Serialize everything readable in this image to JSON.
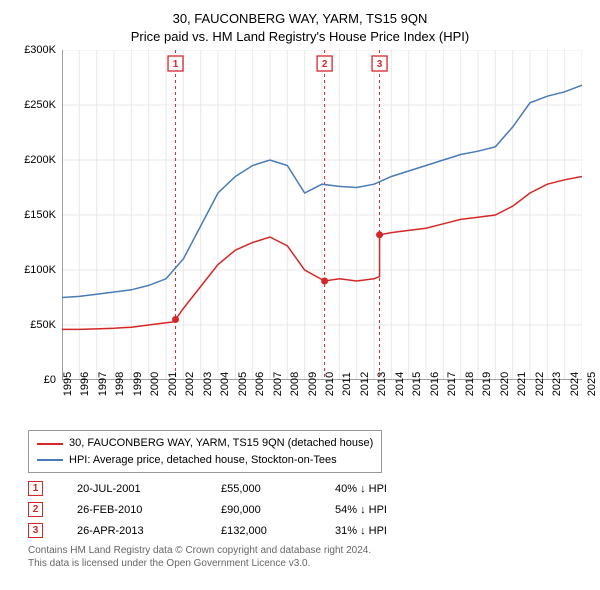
{
  "title_line1": "30, FAUCONBERG WAY, YARM, TS15 9QN",
  "title_line2": "Price paid vs. HM Land Registry's House Price Index (HPI)",
  "chart": {
    "type": "line",
    "background_color": "#ffffff",
    "grid_color": "#e8e8e8",
    "axis_color": "#444444",
    "ylim": [
      0,
      300000
    ],
    "ytick_step": 50000,
    "y_labels": [
      "£0",
      "£50K",
      "£100K",
      "£150K",
      "£200K",
      "£250K",
      "£300K"
    ],
    "xlim": [
      1995,
      2025
    ],
    "x_labels": [
      "1995",
      "1996",
      "1997",
      "1998",
      "1999",
      "2000",
      "2001",
      "2002",
      "2003",
      "2004",
      "2005",
      "2006",
      "2007",
      "2008",
      "2009",
      "2010",
      "2011",
      "2012",
      "2013",
      "2014",
      "2015",
      "2016",
      "2017",
      "2018",
      "2019",
      "2020",
      "2021",
      "2022",
      "2023",
      "2024",
      "2025"
    ],
    "label_fontsize": 11,
    "title_fontsize": 13,
    "series_price": {
      "label": "30, FAUCONBERG WAY, YARM, TS15 9QN (detached house)",
      "color": "#d62728",
      "line_width": 1.5,
      "x": [
        1995,
        1996,
        1997,
        1998,
        1999,
        2000,
        2001,
        2001.55,
        2001.55,
        2002,
        2003,
        2004,
        2005,
        2006,
        2007,
        2008,
        2009,
        2010.15,
        2010.15,
        2011,
        2012,
        2013,
        2013.32,
        2013.32,
        2014,
        2015,
        2016,
        2017,
        2018,
        2019,
        2020,
        2021,
        2022,
        2023,
        2024,
        2025
      ],
      "y": [
        46000,
        46000,
        46500,
        47000,
        48000,
        50000,
        52000,
        53000,
        55000,
        65000,
        85000,
        105000,
        118000,
        125000,
        130000,
        122000,
        100000,
        90000,
        90000,
        92000,
        90000,
        92000,
        94000,
        132000,
        134000,
        136000,
        138000,
        142000,
        146000,
        148000,
        150000,
        158000,
        170000,
        178000,
        182000,
        185000
      ]
    },
    "series_hpi": {
      "label": "HPI: Average price, detached house, Stockton-on-Tees",
      "color": "#4a7bb5",
      "line_width": 1.5,
      "x": [
        1995,
        1996,
        1997,
        1998,
        1999,
        2000,
        2001,
        2002,
        2003,
        2004,
        2005,
        2006,
        2007,
        2008,
        2009,
        2010,
        2011,
        2012,
        2013,
        2014,
        2015,
        2016,
        2017,
        2018,
        2019,
        2020,
        2021,
        2022,
        2023,
        2024,
        2025
      ],
      "y": [
        75000,
        76000,
        78000,
        80000,
        82000,
        86000,
        92000,
        110000,
        140000,
        170000,
        185000,
        195000,
        200000,
        195000,
        170000,
        178000,
        176000,
        175000,
        178000,
        185000,
        190000,
        195000,
        200000,
        205000,
        208000,
        212000,
        230000,
        252000,
        258000,
        262000,
        268000
      ]
    },
    "markers": [
      {
        "n": 1,
        "x": 2001.55,
        "y": 55000
      },
      {
        "n": 2,
        "x": 2010.15,
        "y": 90000
      },
      {
        "n": 3,
        "x": 2013.32,
        "y": 132000
      }
    ],
    "marker_color": "#d62728",
    "marker_line_dash": "3,3",
    "marker_box_size": 15
  },
  "legend": {
    "border_color": "#999999",
    "items": [
      {
        "color": "#d62728",
        "label": "30, FAUCONBERG WAY, YARM, TS15 9QN (detached house)"
      },
      {
        "color": "#4a7bb5",
        "label": "HPI: Average price, detached house, Stockton-on-Tees"
      }
    ]
  },
  "events": [
    {
      "n": "1",
      "date": "20-JUL-2001",
      "price": "£55,000",
      "diff": "40% ↓ HPI"
    },
    {
      "n": "2",
      "date": "26-FEB-2010",
      "price": "£90,000",
      "diff": "54% ↓ HPI"
    },
    {
      "n": "3",
      "date": "26-APR-2013",
      "price": "£132,000",
      "diff": "31% ↓ HPI"
    }
  ],
  "footer_line1": "Contains HM Land Registry data © Crown copyright and database right 2024.",
  "footer_line2": "This data is licensed under the Open Government Licence v3.0."
}
